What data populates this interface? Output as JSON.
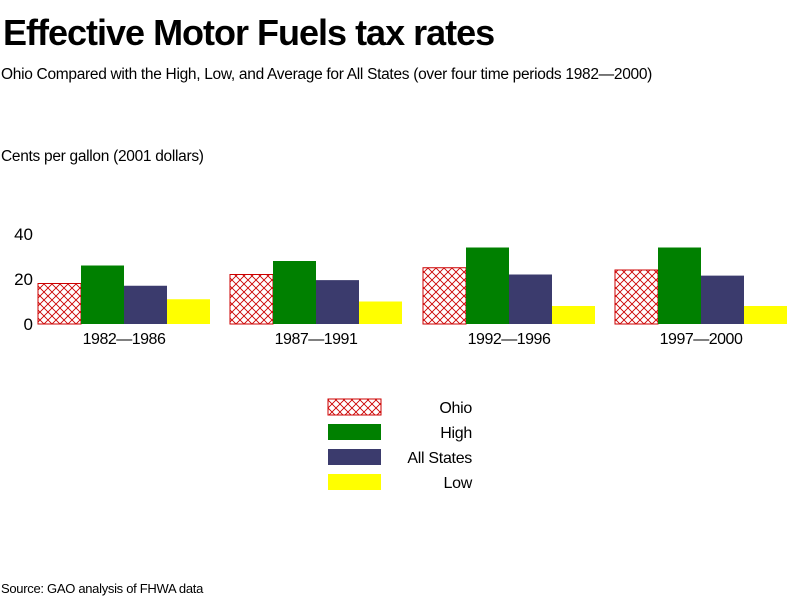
{
  "chart_data": {
    "type": "bar",
    "title": "Effective Motor Fuels tax rates",
    "subtitle": "Ohio Compared with the High, Low, and Average for All States (over four time periods 1982—2000)",
    "ylabel": "Cents per gallon (2001 dollars)",
    "xlabel": "",
    "ylim": [
      0,
      40
    ],
    "yticks": [
      "0",
      "20",
      "40"
    ],
    "categories": [
      "1982—1986",
      "1987—1991",
      "1992—1996",
      "1997—2000"
    ],
    "series": [
      {
        "name": "Ohio",
        "values": [
          18,
          22,
          25,
          24
        ],
        "color": "#cc0000",
        "pattern": "crosshatch"
      },
      {
        "name": "High",
        "values": [
          26,
          28,
          34,
          34
        ],
        "color": "#008000"
      },
      {
        "name": "All States",
        "values": [
          17,
          19.5,
          22,
          21.5
        ],
        "color": "#3b3b6d"
      },
      {
        "name": "Low",
        "values": [
          11,
          10,
          8,
          8
        ],
        "color": "#ffff00"
      }
    ],
    "grid": false,
    "legend_position": "bottom-center",
    "source": "Source: GAO analysis of FHWA data"
  }
}
